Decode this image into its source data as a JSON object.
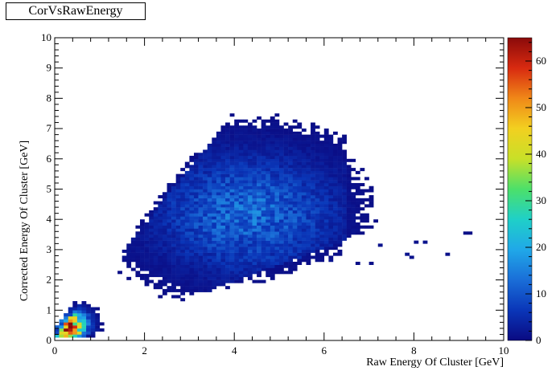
{
  "window": {
    "title": "CorVsRawEnergy"
  },
  "chart_data": {
    "type": "heatmap",
    "title": "CorVsRawEnergy",
    "xlabel": "Raw Energy Of Cluster [GeV]",
    "ylabel": "Corrected Energy Of Cluster [GeV]",
    "xlim": [
      0,
      10
    ],
    "ylim": [
      0,
      10
    ],
    "bins": {
      "x": 100,
      "y": 100
    },
    "x_ticks": [
      "0",
      "2",
      "4",
      "6",
      "8",
      "10"
    ],
    "y_ticks": [
      "0",
      "1",
      "2",
      "3",
      "4",
      "5",
      "6",
      "7",
      "8",
      "9",
      "10"
    ],
    "z_range": [
      0,
      65
    ],
    "z_ticks": [
      "0",
      "10",
      "20",
      "30",
      "40",
      "50",
      "60"
    ],
    "colormap": [
      "#0a0a82",
      "#0a36b8",
      "#1a6ed8",
      "#20a8e8",
      "#1fd0c8",
      "#4ce06a",
      "#c8e028",
      "#f2d020",
      "#f08818",
      "#d82a10",
      "#8a0a0a"
    ],
    "distribution": {
      "description_points_ridge": [
        [
          0.1,
          0.1
        ],
        [
          2,
          2.5
        ],
        [
          4,
          4.5
        ],
        [
          5,
          5.3
        ],
        [
          6,
          6.2
        ]
      ],
      "peak_near_origin": {
        "x": 0.3,
        "y": 0.5,
        "max_count": 65
      },
      "main_cloud_center": {
        "x": 4.3,
        "y": 4.2,
        "typical_count": 12
      },
      "upper_edge_slope": 1.85,
      "lower_edge_slope": 0.55,
      "sparse_tail_max_x": 9.3
    }
  }
}
